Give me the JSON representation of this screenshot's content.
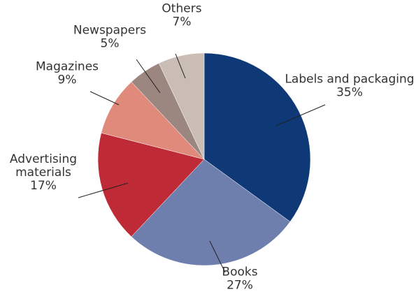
{
  "chart_data": {
    "type": "pie",
    "title": "",
    "slices": [
      {
        "name": "Labels and packaging",
        "value": 35,
        "value_label": "35%",
        "color": "#0E3876"
      },
      {
        "name": "Books",
        "value": 27,
        "value_label": "27%",
        "color": "#6E7FAE"
      },
      {
        "name": "Advertising materials",
        "name_lines": [
          "Advertising",
          "materials"
        ],
        "value": 17,
        "value_label": "17%",
        "color": "#BE2A36"
      },
      {
        "name": "Magazines",
        "value": 9,
        "value_label": "9%",
        "color": "#E08A7C"
      },
      {
        "name": "Newspapers",
        "value": 5,
        "value_label": "5%",
        "color": "#9B8780"
      },
      {
        "name": "Others",
        "value": 7,
        "value_label": "7%",
        "color": "#C9BDB6"
      }
    ]
  }
}
